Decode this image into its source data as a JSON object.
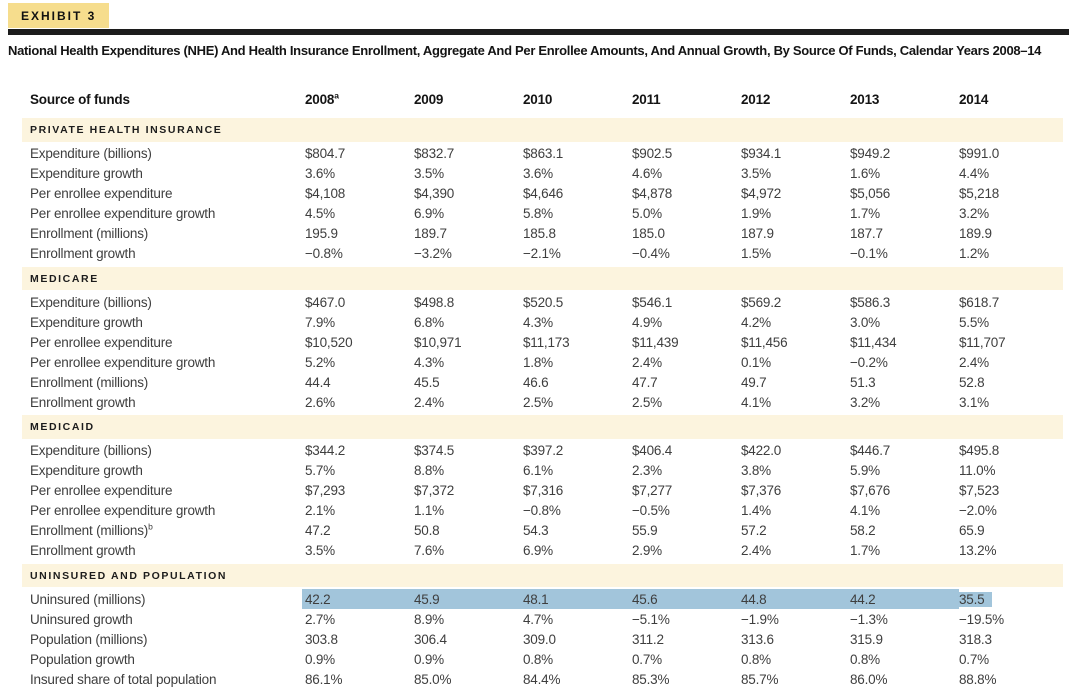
{
  "exhibit_tag": "EXHIBIT 3",
  "title": "National Health Expenditures (NHE) And Health Insurance Enrollment, Aggregate And Per Enrollee Amounts, And Annual Growth, By Source Of Funds, Calendar Years 2008–14",
  "colors": {
    "badge_bg": "#f6dd8d",
    "rule": "#1c1c1c",
    "section_band_bg": "#fcf4de",
    "selection_highlight": "#a2c5db",
    "body_text": "#3e3e3e"
  },
  "table": {
    "header": {
      "label": "Source of funds",
      "years": [
        {
          "text": "2008",
          "sup": "a"
        },
        {
          "text": "2009"
        },
        {
          "text": "2010"
        },
        {
          "text": "2011"
        },
        {
          "text": "2012"
        },
        {
          "text": "2013"
        },
        {
          "text": "2014"
        }
      ]
    },
    "sections": [
      {
        "name": "PRIVATE HEALTH INSURANCE",
        "rows": [
          {
            "label": "Expenditure (billions)",
            "values": [
              "$804.7",
              "$832.7",
              "$863.1",
              "$902.5",
              "$934.1",
              "$949.2",
              "$991.0"
            ]
          },
          {
            "label": "Expenditure growth",
            "values": [
              "3.6%",
              "3.5%",
              "3.6%",
              "4.6%",
              "3.5%",
              "1.6%",
              "4.4%"
            ]
          },
          {
            "label": "Per enrollee expenditure",
            "values": [
              "$4,108",
              "$4,390",
              "$4,646",
              "$4,878",
              "$4,972",
              "$5,056",
              "$5,218"
            ]
          },
          {
            "label": "Per enrollee expenditure growth",
            "values": [
              "4.5%",
              "6.9%",
              "5.8%",
              "5.0%",
              "1.9%",
              "1.7%",
              "3.2%"
            ]
          },
          {
            "label": "Enrollment (millions)",
            "values": [
              "195.9",
              "189.7",
              "185.8",
              "185.0",
              "187.9",
              "187.7",
              "189.9"
            ]
          },
          {
            "label": "Enrollment growth",
            "values": [
              "−0.8%",
              "−3.2%",
              "−2.1%",
              "−0.4%",
              "1.5%",
              "−0.1%",
              "1.2%"
            ]
          }
        ]
      },
      {
        "name": "MEDICARE",
        "rows": [
          {
            "label": "Expenditure (billions)",
            "values": [
              "$467.0",
              "$498.8",
              "$520.5",
              "$546.1",
              "$569.2",
              "$586.3",
              "$618.7"
            ]
          },
          {
            "label": "Expenditure growth",
            "values": [
              "7.9%",
              "6.8%",
              "4.3%",
              "4.9%",
              "4.2%",
              "3.0%",
              "5.5%"
            ]
          },
          {
            "label": "Per enrollee expenditure",
            "values": [
              "$10,520",
              "$10,971",
              "$11,173",
              "$11,439",
              "$11,456",
              "$11,434",
              "$11,707"
            ]
          },
          {
            "label": "Per enrollee expenditure growth",
            "values": [
              "5.2%",
              "4.3%",
              "1.8%",
              "2.4%",
              "0.1%",
              "−0.2%",
              "2.4%"
            ]
          },
          {
            "label": "Enrollment (millions)",
            "values": [
              "44.4",
              "45.5",
              "46.6",
              "47.7",
              "49.7",
              "51.3",
              "52.8"
            ]
          },
          {
            "label": "Enrollment growth",
            "values": [
              "2.6%",
              "2.4%",
              "2.5%",
              "2.5%",
              "4.1%",
              "3.2%",
              "3.1%"
            ]
          }
        ]
      },
      {
        "name": "MEDICAID",
        "rows": [
          {
            "label": "Expenditure (billions)",
            "values": [
              "$344.2",
              "$374.5",
              "$397.2",
              "$406.4",
              "$422.0",
              "$446.7",
              "$495.8"
            ]
          },
          {
            "label": "Expenditure growth",
            "values": [
              "5.7%",
              "8.8%",
              "6.1%",
              "2.3%",
              "3.8%",
              "5.9%",
              "11.0%"
            ]
          },
          {
            "label": "Per enrollee expenditure",
            "values": [
              "$7,293",
              "$7,372",
              "$7,316",
              "$7,277",
              "$7,376",
              "$7,676",
              "$7,523"
            ]
          },
          {
            "label": "Per enrollee expenditure growth",
            "values": [
              "2.1%",
              "1.1%",
              "−0.8%",
              "−0.5%",
              "1.4%",
              "4.1%",
              "−2.0%"
            ]
          },
          {
            "label": "Enrollment (millions)",
            "sup": "b",
            "values": [
              "47.2",
              "50.8",
              "54.3",
              "55.9",
              "57.2",
              "58.2",
              "65.9"
            ]
          },
          {
            "label": "Enrollment growth",
            "values": [
              "3.5%",
              "7.6%",
              "6.9%",
              "2.9%",
              "2.4%",
              "1.7%",
              "13.2%"
            ]
          }
        ]
      },
      {
        "name": "UNINSURED AND POPULATION",
        "rows": [
          {
            "label": "Uninsured (millions)",
            "highlight": true,
            "values": [
              "42.2",
              "45.9",
              "48.1",
              "45.6",
              "44.8",
              "44.2",
              "35.5"
            ]
          },
          {
            "label": "Uninsured growth",
            "values": [
              "2.7%",
              "8.9%",
              "4.7%",
              "−5.1%",
              "−1.9%",
              "−1.3%",
              "−19.5%"
            ]
          },
          {
            "label": "Population (millions)",
            "values": [
              "303.8",
              "306.4",
              "309.0",
              "311.2",
              "313.6",
              "315.9",
              "318.3"
            ]
          },
          {
            "label": "Population growth",
            "values": [
              "0.9%",
              "0.9%",
              "0.8%",
              "0.7%",
              "0.8%",
              "0.8%",
              "0.7%"
            ]
          },
          {
            "label": "Insured share of total population",
            "values": [
              "86.1%",
              "85.0%",
              "84.4%",
              "85.3%",
              "85.7%",
              "86.0%",
              "88.8%"
            ]
          }
        ]
      }
    ]
  }
}
